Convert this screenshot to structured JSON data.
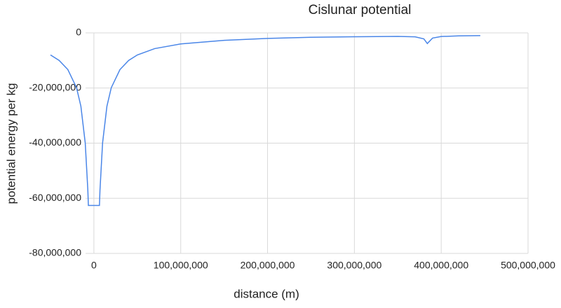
{
  "chart_data": {
    "type": "line",
    "title": "Cislunar potential",
    "x_label": "distance (m)",
    "y_label": "potential energy per kg",
    "xlim": [
      -50000000,
      500000000
    ],
    "ylim": [
      -80000000,
      0
    ],
    "xticks": [
      0,
      {
        "value": 100000000,
        "label": "100,000,000"
      },
      {
        "value": 200000000,
        "label": "200,000,000"
      },
      {
        "value": 300000000,
        "label": "300,000,000"
      },
      {
        "value": 400000000,
        "label": "400,000,000"
      },
      {
        "value": 500000000,
        "label": "500,000,000"
      }
    ],
    "yticks": [
      0,
      {
        "value": -20000000,
        "label": "-20,000,000"
      },
      {
        "value": -40000000,
        "label": "-40,000,000"
      },
      {
        "value": -60000000,
        "label": "-60,000,000"
      },
      {
        "value": -80000000,
        "label": "-80,000,000"
      }
    ],
    "grid": true,
    "x": [
      -50000000,
      -40000000,
      -30000000,
      -20000000,
      -15000000,
      -10000000,
      -7000000,
      -6370000,
      6370000,
      7000000,
      10000000,
      15000000,
      20000000,
      30000000,
      40000000,
      50000000,
      70000000,
      100000000,
      150000000,
      200000000,
      250000000,
      300000000,
      350000000,
      370000000,
      380000000,
      384000000,
      390000000,
      400000000,
      420000000,
      445000000
    ],
    "series": [
      {
        "color": "#4a86e8",
        "values": [
          -8000000,
          -10000000,
          -13300000,
          -19900000,
          -26600000,
          -39900000,
          -56900000,
          -62600000,
          -62600000,
          -57000000,
          -39900000,
          -26600000,
          -19900000,
          -13300000,
          -10000000,
          -8000000,
          -5700000,
          -4000000,
          -2700000,
          -2000000,
          -1600000,
          -1390000,
          -1280000,
          -1420000,
          -2160000,
          -3860000,
          -1890000,
          -1310000,
          -1090000,
          -980000
        ]
      }
    ]
  }
}
